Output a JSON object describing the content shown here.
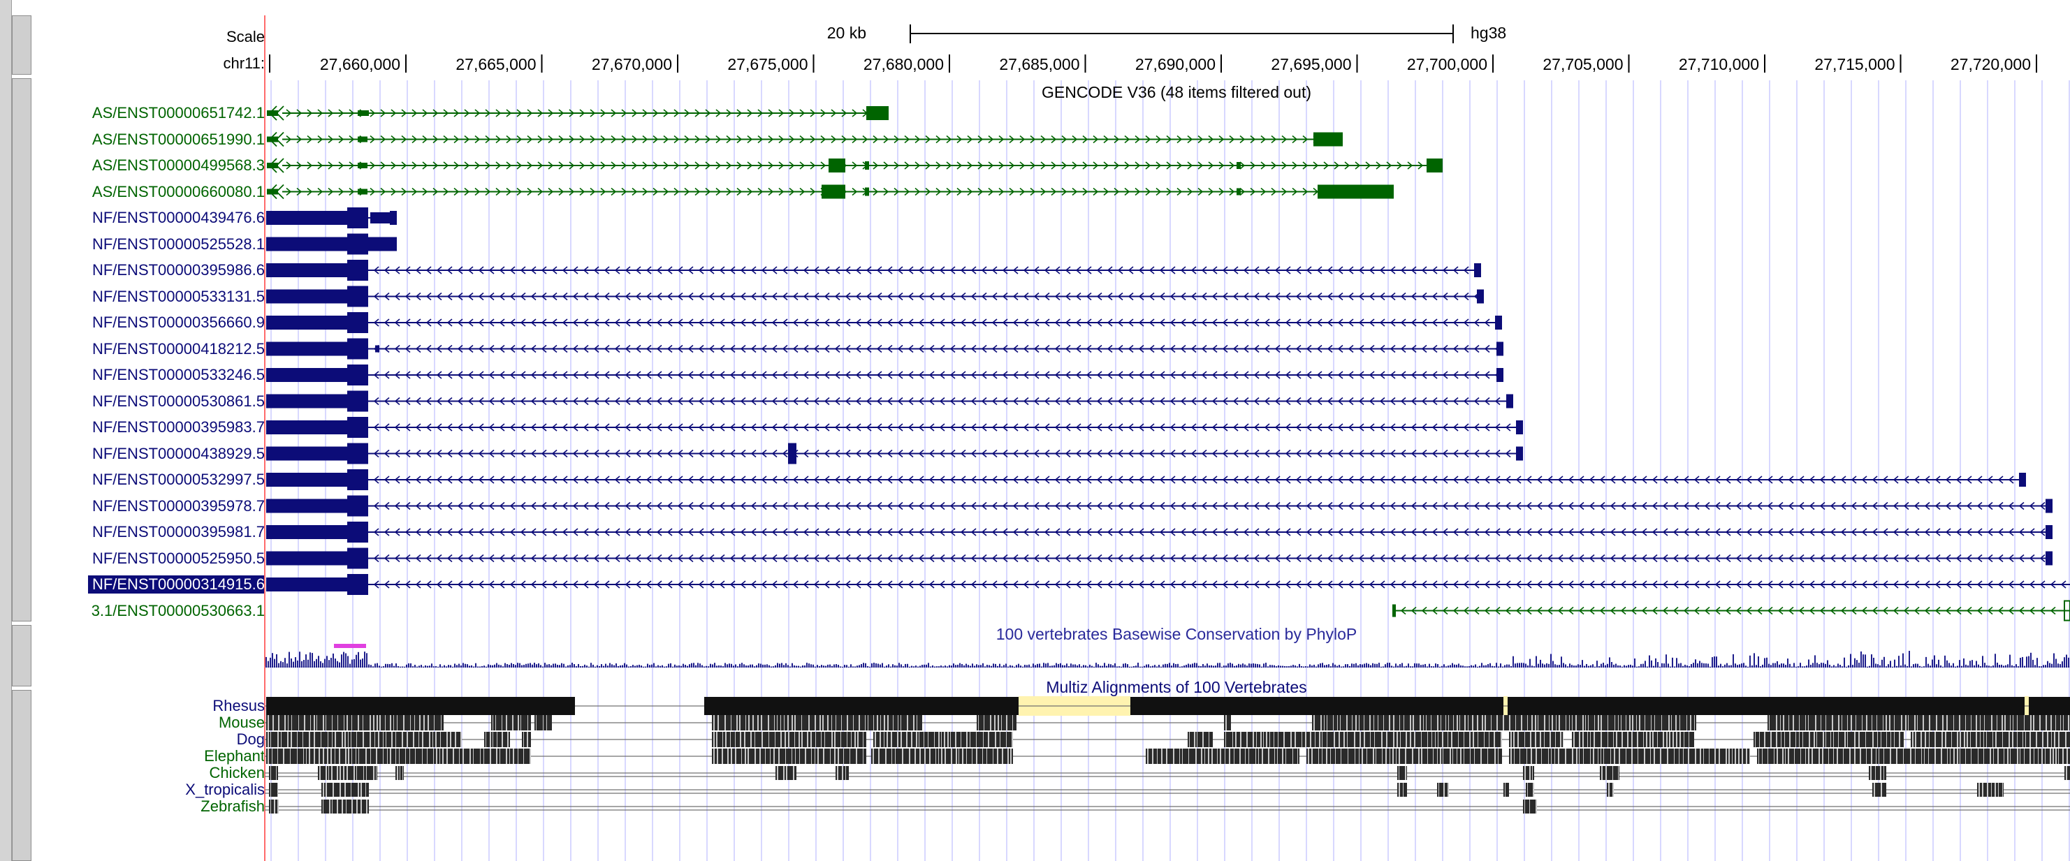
{
  "ruler": {
    "scale_label": "Scale",
    "scale_bar_text": "20 kb",
    "assembly": "hg38",
    "chrom_label": "chr11:",
    "ticks": [
      "27,660,000",
      "27,665,000",
      "27,670,000",
      "27,675,000",
      "27,680,000",
      "27,685,000",
      "27,690,000",
      "27,695,000",
      "27,700,000",
      "27,705,000",
      "27,710,000",
      "27,715,000",
      "27,720,000"
    ]
  },
  "gencode": {
    "title": "GENCODE V36 (48 items filtered out)",
    "transcripts": [
      {
        "label": "AS/ENST00000651742.1",
        "color": "#006400",
        "strand": "+"
      },
      {
        "label": "AS/ENST00000651990.1",
        "color": "#006400",
        "strand": "+"
      },
      {
        "label": "AS/ENST00000499568.3",
        "color": "#006400",
        "strand": "+"
      },
      {
        "label": "AS/ENST00000660080.1",
        "color": "#006400",
        "strand": "+"
      },
      {
        "label": "NF/ENST00000439476.6",
        "color": "#0c0c78",
        "strand": "-"
      },
      {
        "label": "NF/ENST00000525528.1",
        "color": "#0c0c78",
        "strand": "-"
      },
      {
        "label": "NF/ENST00000395986.6",
        "color": "#0c0c78",
        "strand": "-"
      },
      {
        "label": "NF/ENST00000533131.5",
        "color": "#0c0c78",
        "strand": "-"
      },
      {
        "label": "NF/ENST00000356660.9",
        "color": "#0c0c78",
        "strand": "-"
      },
      {
        "label": "NF/ENST00000418212.5",
        "color": "#0c0c78",
        "strand": "-"
      },
      {
        "label": "NF/ENST00000533246.5",
        "color": "#0c0c78",
        "strand": "-"
      },
      {
        "label": "NF/ENST00000530861.5",
        "color": "#0c0c78",
        "strand": "-"
      },
      {
        "label": "NF/ENST00000395983.7",
        "color": "#0c0c78",
        "strand": "-"
      },
      {
        "label": "NF/ENST00000438929.5",
        "color": "#0c0c78",
        "strand": "-"
      },
      {
        "label": "NF/ENST00000532997.5",
        "color": "#0c0c78",
        "strand": "-"
      },
      {
        "label": "NF/ENST00000395978.7",
        "color": "#0c0c78",
        "strand": "-"
      },
      {
        "label": "NF/ENST00000395981.7",
        "color": "#0c0c78",
        "strand": "-"
      },
      {
        "label": "NF/ENST00000525950.5",
        "color": "#0c0c78",
        "strand": "-"
      },
      {
        "label": "NF/ENST00000314915.6",
        "color": "#0c0c78",
        "strand": "-",
        "selected": true
      },
      {
        "label": "3.1/ENST00000530663.1",
        "color": "#006400",
        "strand": "-"
      }
    ]
  },
  "phylop": {
    "title": "100 vertebrates Basewise Conservation by PhyloP"
  },
  "multiz": {
    "title": "Multiz Alignments of 100 Vertebrates",
    "species": [
      {
        "name": "Rhesus",
        "color": "#0c0c78"
      },
      {
        "name": "Mouse",
        "color": "#006400"
      },
      {
        "name": "Dog",
        "color": "#0c0c78"
      },
      {
        "name": "Elephant",
        "color": "#006400"
      },
      {
        "name": "Chicken",
        "color": "#006400"
      },
      {
        "name": "X_tropicalis",
        "color": "#0c0c78"
      },
      {
        "name": "Zebrafish",
        "color": "#006400"
      }
    ]
  },
  "colors": {
    "blue_gene": "#0c0c78",
    "green_gene": "#006400",
    "grid": "#ccccff",
    "highlight": "#fff3b0",
    "phylop": "#1e1e8c",
    "phylop_hi": "#e040e0"
  }
}
